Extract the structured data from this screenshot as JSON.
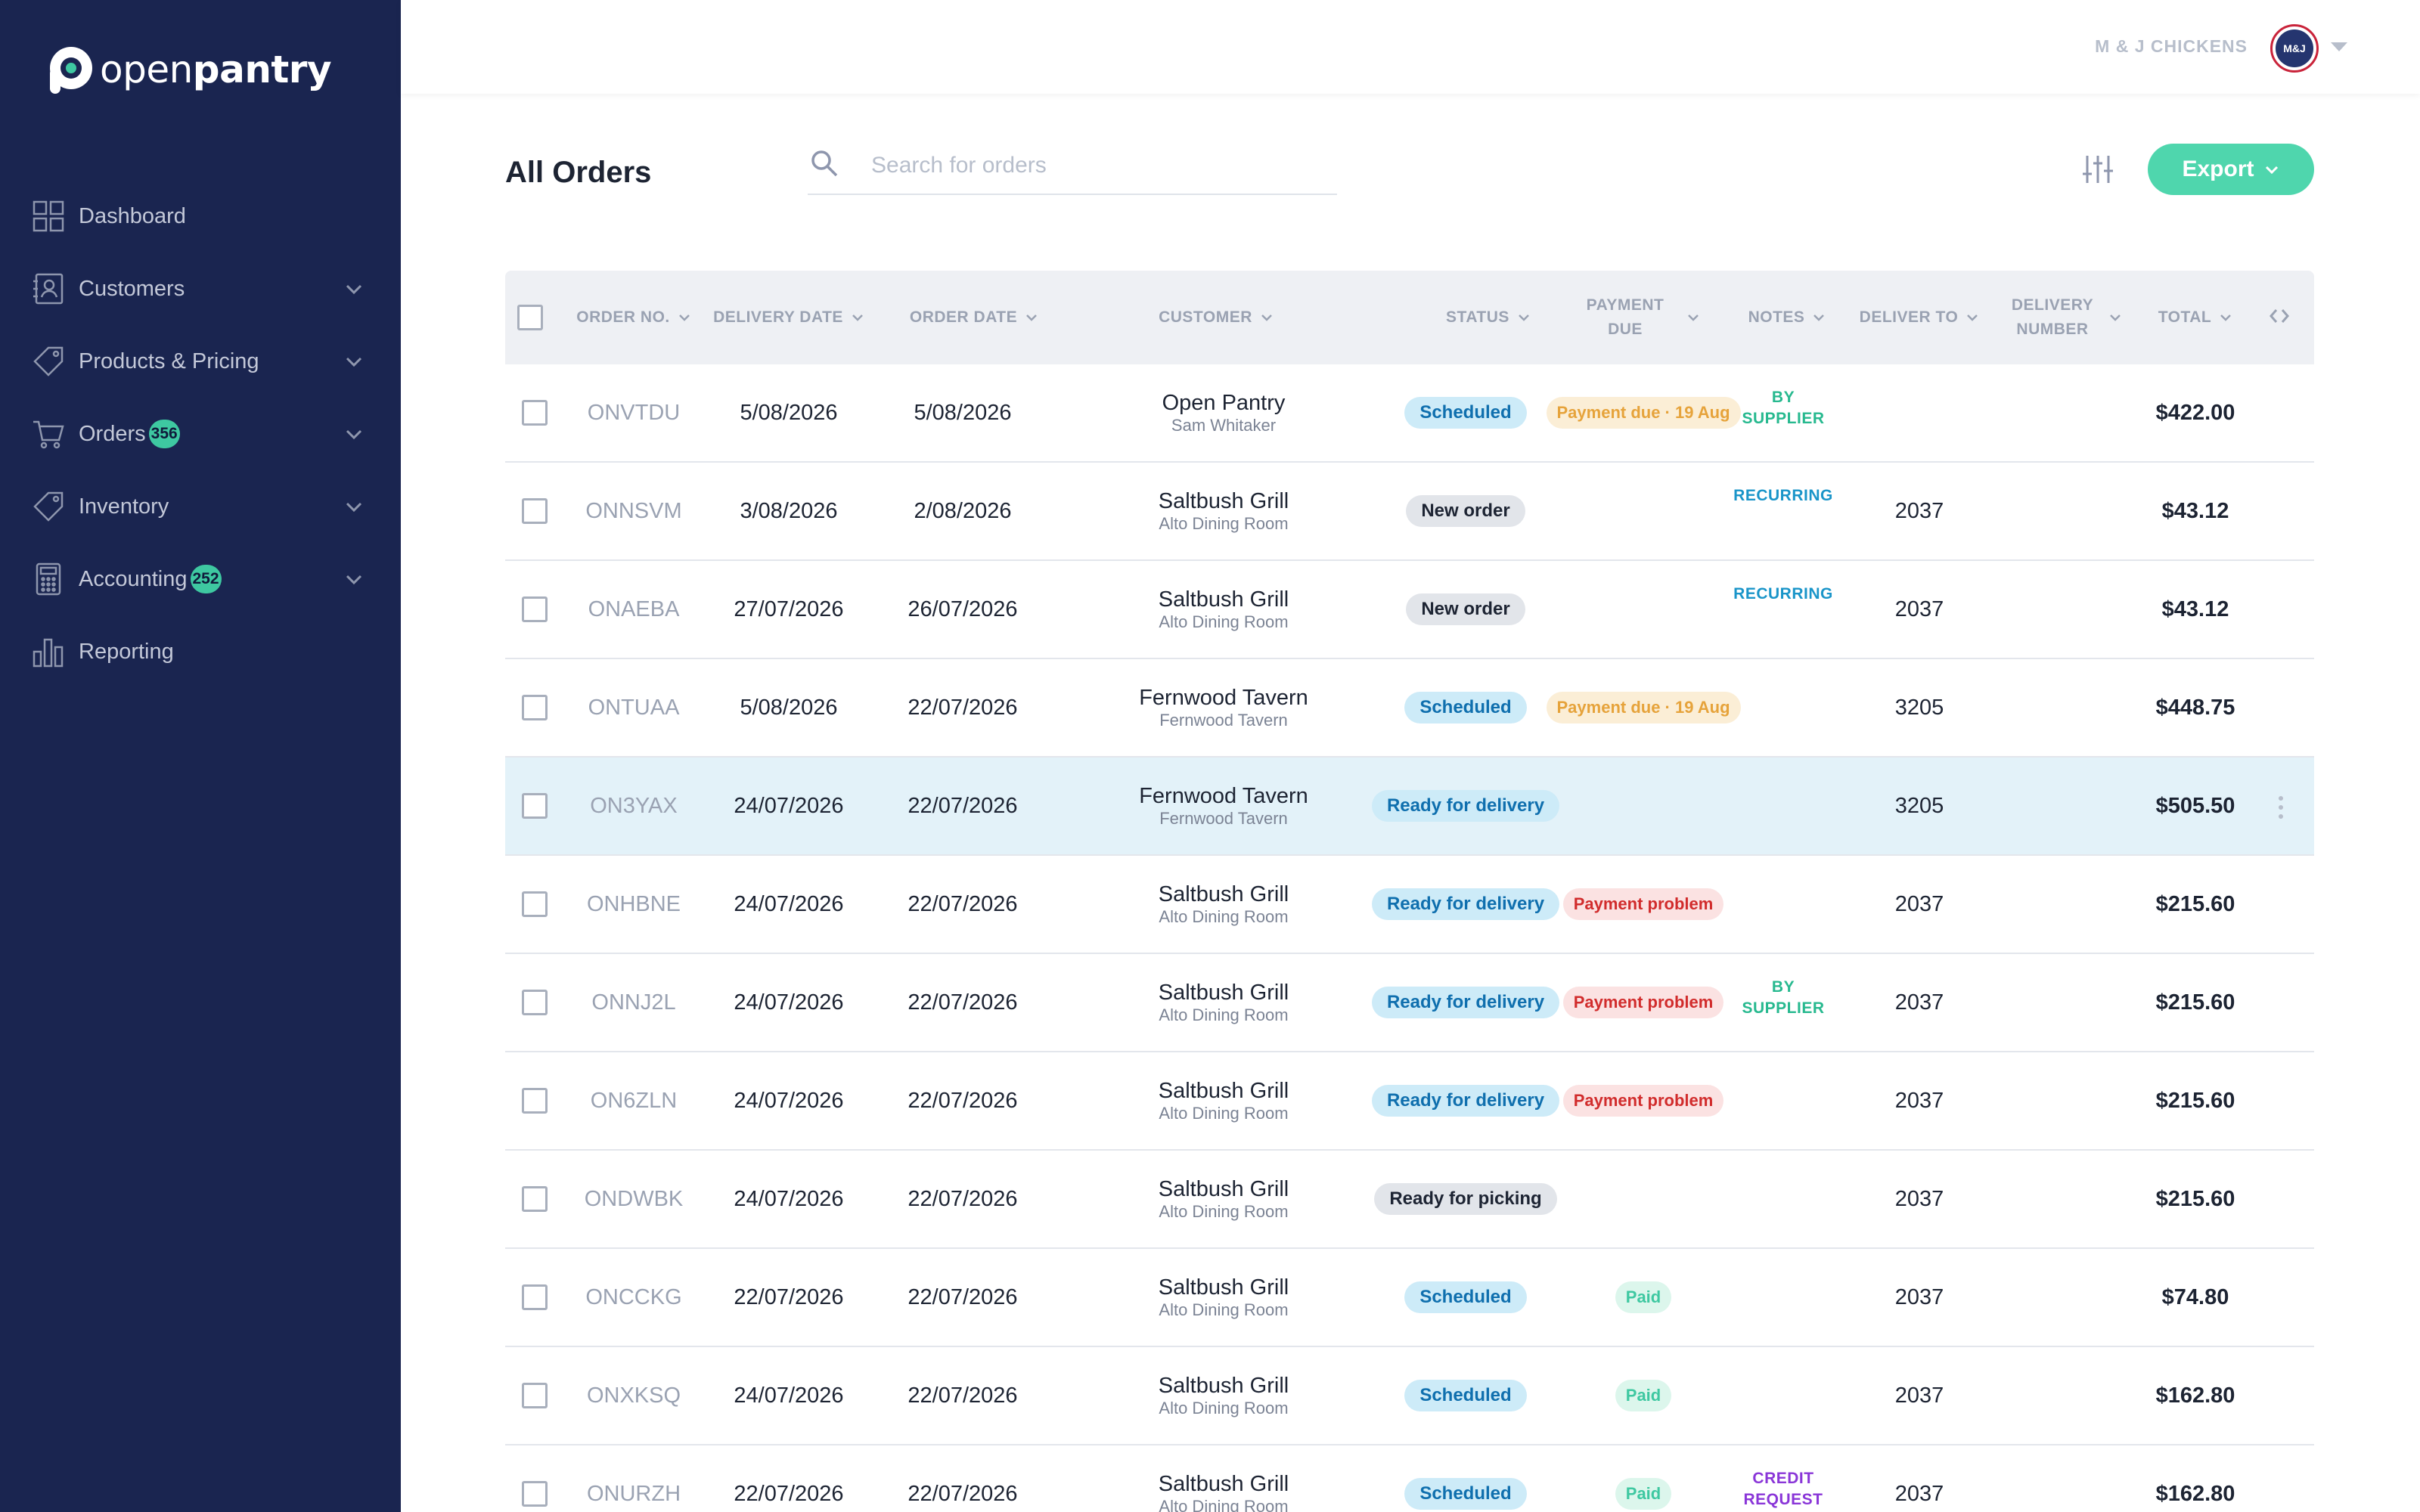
{
  "brand": {
    "name_light": "open",
    "name_bold": "pantry"
  },
  "sidebar": {
    "items": [
      {
        "label": "Dashboard",
        "icon": "dashboard-icon",
        "badge": null,
        "expandable": false
      },
      {
        "label": "Customers",
        "icon": "customers-icon",
        "badge": null,
        "expandable": true
      },
      {
        "label": "Products & Pricing",
        "icon": "tag-icon",
        "badge": null,
        "expandable": true
      },
      {
        "label": "Orders",
        "icon": "cart-icon",
        "badge": "356",
        "expandable": true
      },
      {
        "label": "Inventory",
        "icon": "inventory-tag-icon",
        "badge": null,
        "expandable": true
      },
      {
        "label": "Accounting",
        "icon": "calculator-icon",
        "badge": "252",
        "expandable": true
      },
      {
        "label": "Reporting",
        "icon": "bar-chart-icon",
        "badge": null,
        "expandable": false
      }
    ]
  },
  "topbar": {
    "company": "M & J CHICKENS",
    "avatar_text": "M&J"
  },
  "page": {
    "title": "All Orders"
  },
  "search": {
    "placeholder": "Search for orders",
    "value": ""
  },
  "toolbar": {
    "export_label": "Export"
  },
  "table": {
    "columns": {
      "order_no": "ORDER NO.",
      "delivery_date": "DELIVERY DATE",
      "order_date": "ORDER DATE",
      "customer": "CUSTOMER",
      "status": "STATUS",
      "payment_due_1": "PAYMENT",
      "payment_due_2": "DUE",
      "notes": "NOTES",
      "deliver_to": "DELIVER TO",
      "delivery_number_1": "DELIVERY",
      "delivery_number_2": "NUMBER",
      "total": "TOTAL"
    },
    "rows": [
      {
        "order_no": "ONVTDU",
        "delivery_date": "5/08/2026",
        "order_date": "5/08/2026",
        "customer": "Open Pantry",
        "customer_sub": "Sam Whitaker",
        "status": "Scheduled",
        "status_kind": "scheduled",
        "payment": "Payment due · 19 Aug",
        "payment_kind": "due",
        "note": "BY SUPPLIER",
        "note_kind": "supplier",
        "deliver_to": "",
        "total": "$422.00",
        "highlighted": false
      },
      {
        "order_no": "ONNSVM",
        "delivery_date": "3/08/2026",
        "order_date": "2/08/2026",
        "customer": "Saltbush Grill",
        "customer_sub": "Alto Dining Room",
        "status": "New order",
        "status_kind": "new",
        "payment": "",
        "payment_kind": "",
        "note": "RECURRING",
        "note_kind": "recurring",
        "deliver_to": "2037",
        "total": "$43.12",
        "highlighted": false
      },
      {
        "order_no": "ONAEBA",
        "delivery_date": "27/07/2026",
        "order_date": "26/07/2026",
        "customer": "Saltbush Grill",
        "customer_sub": "Alto Dining Room",
        "status": "New order",
        "status_kind": "new",
        "payment": "",
        "payment_kind": "",
        "note": "RECURRING",
        "note_kind": "recurring",
        "deliver_to": "2037",
        "total": "$43.12",
        "highlighted": false
      },
      {
        "order_no": "ONTUAA",
        "delivery_date": "5/08/2026",
        "order_date": "22/07/2026",
        "customer": "Fernwood Tavern",
        "customer_sub": "Fernwood Tavern",
        "status": "Scheduled",
        "status_kind": "scheduled",
        "payment": "Payment due · 19 Aug",
        "payment_kind": "due",
        "note": "",
        "note_kind": "",
        "deliver_to": "3205",
        "total": "$448.75",
        "highlighted": false
      },
      {
        "order_no": "ON3YAX",
        "delivery_date": "24/07/2026",
        "order_date": "22/07/2026",
        "customer": "Fernwood Tavern",
        "customer_sub": "Fernwood Tavern",
        "status": "Ready for delivery",
        "status_kind": "ready",
        "payment": "",
        "payment_kind": "",
        "note": "",
        "note_kind": "",
        "deliver_to": "3205",
        "total": "$505.50",
        "highlighted": true
      },
      {
        "order_no": "ONHBNE",
        "delivery_date": "24/07/2026",
        "order_date": "22/07/2026",
        "customer": "Saltbush Grill",
        "customer_sub": "Alto Dining Room",
        "status": "Ready for delivery",
        "status_kind": "ready",
        "payment": "Payment problem",
        "payment_kind": "problem",
        "note": "",
        "note_kind": "",
        "deliver_to": "2037",
        "total": "$215.60",
        "highlighted": false
      },
      {
        "order_no": "ONNJ2L",
        "delivery_date": "24/07/2026",
        "order_date": "22/07/2026",
        "customer": "Saltbush Grill",
        "customer_sub": "Alto Dining Room",
        "status": "Ready for delivery",
        "status_kind": "ready",
        "payment": "Payment problem",
        "payment_kind": "problem",
        "note": "BY SUPPLIER",
        "note_kind": "supplier",
        "deliver_to": "2037",
        "total": "$215.60",
        "highlighted": false
      },
      {
        "order_no": "ON6ZLN",
        "delivery_date": "24/07/2026",
        "order_date": "22/07/2026",
        "customer": "Saltbush Grill",
        "customer_sub": "Alto Dining Room",
        "status": "Ready for delivery",
        "status_kind": "ready",
        "payment": "Payment problem",
        "payment_kind": "problem",
        "note": "",
        "note_kind": "",
        "deliver_to": "2037",
        "total": "$215.60",
        "highlighted": false
      },
      {
        "order_no": "ONDWBK",
        "delivery_date": "24/07/2026",
        "order_date": "22/07/2026",
        "customer": "Saltbush Grill",
        "customer_sub": "Alto Dining Room",
        "status": "Ready for picking",
        "status_kind": "picking",
        "payment": "",
        "payment_kind": "",
        "note": "",
        "note_kind": "",
        "deliver_to": "2037",
        "total": "$215.60",
        "highlighted": false
      },
      {
        "order_no": "ONCCKG",
        "delivery_date": "22/07/2026",
        "order_date": "22/07/2026",
        "customer": "Saltbush Grill",
        "customer_sub": "Alto Dining Room",
        "status": "Scheduled",
        "status_kind": "scheduled",
        "payment": "Paid",
        "payment_kind": "paid",
        "note": "",
        "note_kind": "",
        "deliver_to": "2037",
        "total": "$74.80",
        "highlighted": false
      },
      {
        "order_no": "ONXKSQ",
        "delivery_date": "24/07/2026",
        "order_date": "22/07/2026",
        "customer": "Saltbush Grill",
        "customer_sub": "Alto Dining Room",
        "status": "Scheduled",
        "status_kind": "scheduled",
        "payment": "Paid",
        "payment_kind": "paid",
        "note": "",
        "note_kind": "",
        "deliver_to": "2037",
        "total": "$162.80",
        "highlighted": false
      },
      {
        "order_no": "ONURZH",
        "delivery_date": "22/07/2026",
        "order_date": "22/07/2026",
        "customer": "Saltbush Grill",
        "customer_sub": "Alto Dining Room",
        "status": "Scheduled",
        "status_kind": "scheduled",
        "payment": "Paid",
        "payment_kind": "paid",
        "note": "CREDIT REQUEST",
        "note_kind": "credit",
        "deliver_to": "2037",
        "total": "$162.80",
        "highlighted": false
      }
    ]
  },
  "colors": {
    "sidebar_bg": "#1a2550",
    "accent": "#4fd6ad",
    "row_highlight": "#e3f2f9",
    "header_bg": "#eef0f4"
  }
}
